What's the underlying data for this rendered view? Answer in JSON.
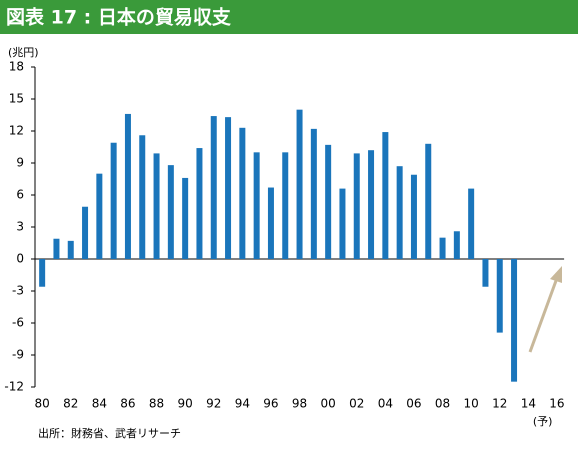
{
  "chart_data": {
    "type": "bar",
    "title": "図表 17 : 日本の貿易収支",
    "y_unit": "(兆円)",
    "source": "出所：財務省、武者リサーチ",
    "annotation": "(予)",
    "color": "#1a75bb",
    "categories": [
      "80",
      null,
      "82",
      null,
      "84",
      null,
      "86",
      null,
      "88",
      null,
      "90",
      null,
      "92",
      null,
      "94",
      null,
      "96",
      null,
      "98",
      null,
      "00",
      null,
      "02",
      null,
      "04",
      null,
      "06",
      null,
      "08",
      null,
      "10",
      null,
      "12",
      null,
      "14",
      null,
      "16"
    ],
    "values": [
      -2.6,
      1.9,
      1.7,
      4.9,
      8.0,
      10.9,
      13.6,
      11.6,
      9.9,
      8.8,
      7.6,
      10.4,
      13.4,
      13.3,
      12.3,
      10.0,
      6.7,
      10.0,
      14.0,
      12.2,
      10.7,
      6.6,
      9.9,
      10.2,
      11.9,
      8.7,
      7.9,
      10.8,
      2.0,
      2.6,
      6.6,
      -2.6,
      -6.9,
      -11.5,
      null,
      null,
      null
    ],
    "ylim": [
      -12,
      18
    ],
    "yticks": [
      18,
      15,
      12,
      9,
      6,
      3,
      0,
      -3,
      -6,
      -9,
      -12
    ]
  }
}
